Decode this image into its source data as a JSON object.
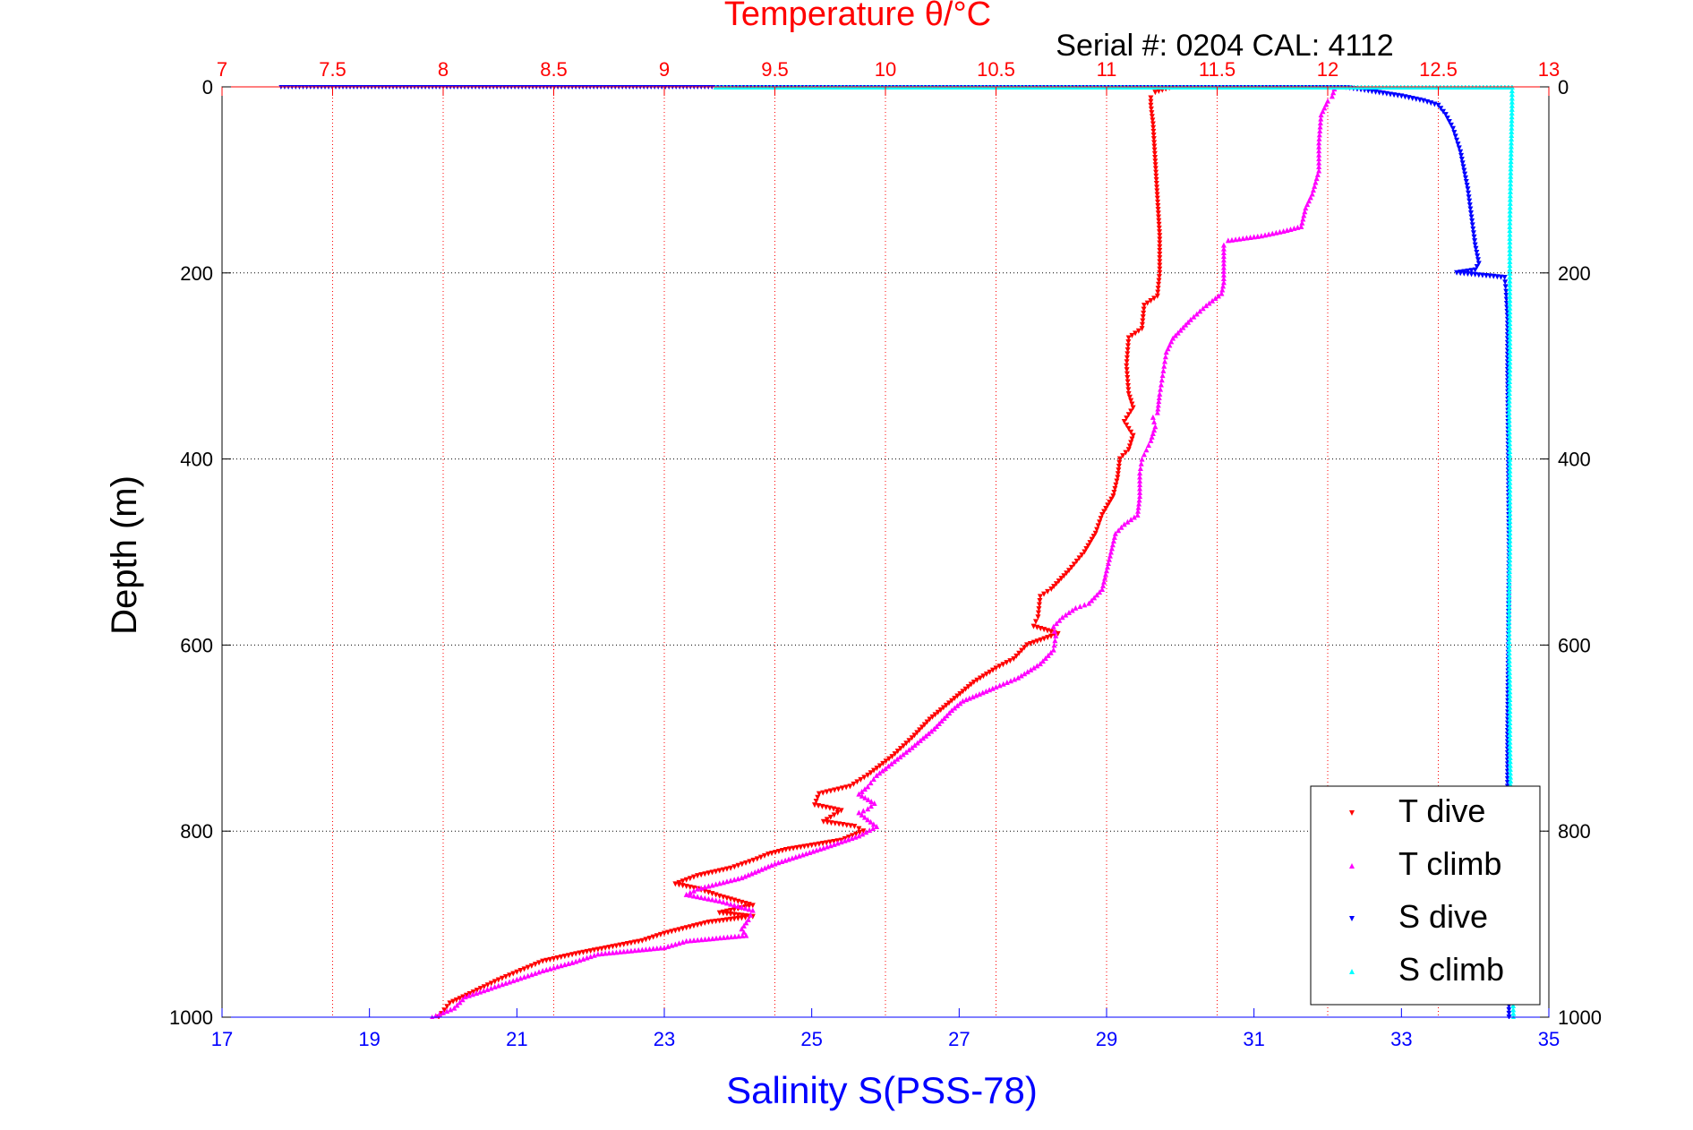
{
  "chart_data": {
    "type": "scatter",
    "title": "Temperature θ/°C",
    "subtitle": "Serial #: 0204  CAL: 4112",
    "xlabel": "Salinity S(PSS-78)",
    "ylabel": "Depth (m)",
    "x_top": {
      "label": "Temperature θ/°C",
      "lim": [
        7,
        13
      ],
      "ticks": [
        "7",
        "7.5",
        "8",
        "8.5",
        "9",
        "9.5",
        "10",
        "10.5",
        "11",
        "11.5",
        "12",
        "12.5",
        "13"
      ],
      "color": "#ff0000"
    },
    "x_bottom": {
      "label": "Salinity S(PSS-78)",
      "lim": [
        17,
        35
      ],
      "ticks": [
        "17",
        "19",
        "21",
        "23",
        "25",
        "27",
        "29",
        "31",
        "33",
        "35"
      ],
      "color": "#0000ff"
    },
    "y": {
      "lim": [
        0,
        1000
      ],
      "reversed": true,
      "ticks": [
        "0",
        "200",
        "400",
        "600",
        "800",
        "1000"
      ]
    },
    "grid": {
      "x_top": true,
      "y": true
    },
    "legend": {
      "position": "bottom-right"
    },
    "series": [
      {
        "name": "T dive",
        "axis": "top",
        "color": "#ff0000",
        "marker": "triangle-down",
        "points": [
          [
            11.3,
            0
          ],
          [
            11.22,
            6
          ],
          [
            11.2,
            12
          ],
          [
            11.2,
            20
          ],
          [
            11.21,
            40
          ],
          [
            11.22,
            80
          ],
          [
            11.23,
            120
          ],
          [
            11.24,
            160
          ],
          [
            11.24,
            200
          ],
          [
            11.23,
            225
          ],
          [
            11.17,
            235
          ],
          [
            11.16,
            260
          ],
          [
            11.1,
            270
          ],
          [
            11.09,
            300
          ],
          [
            11.1,
            330
          ],
          [
            11.12,
            345
          ],
          [
            11.08,
            360
          ],
          [
            11.12,
            375
          ],
          [
            11.1,
            390
          ],
          [
            11.06,
            400
          ],
          [
            11.05,
            420
          ],
          [
            11.03,
            440
          ],
          [
            10.98,
            460
          ],
          [
            10.95,
            480
          ],
          [
            10.9,
            500
          ],
          [
            10.83,
            520
          ],
          [
            10.75,
            540
          ],
          [
            10.7,
            548
          ],
          [
            10.69,
            570
          ],
          [
            10.67,
            580
          ],
          [
            10.78,
            588
          ],
          [
            10.64,
            600
          ],
          [
            10.58,
            615
          ],
          [
            10.5,
            625
          ],
          [
            10.4,
            640
          ],
          [
            10.3,
            660
          ],
          [
            10.2,
            680
          ],
          [
            10.12,
            700
          ],
          [
            10.03,
            720
          ],
          [
            9.92,
            740
          ],
          [
            9.84,
            752
          ],
          [
            9.7,
            760
          ],
          [
            9.68,
            772
          ],
          [
            9.8,
            778
          ],
          [
            9.72,
            790
          ],
          [
            9.86,
            795
          ],
          [
            9.9,
            800
          ],
          [
            9.8,
            810
          ],
          [
            9.55,
            820
          ],
          [
            9.47,
            825
          ],
          [
            9.42,
            830
          ],
          [
            9.3,
            840
          ],
          [
            9.15,
            848
          ],
          [
            9.05,
            857
          ],
          [
            9.15,
            862
          ],
          [
            9.25,
            870
          ],
          [
            9.4,
            880
          ],
          [
            9.25,
            888
          ],
          [
            9.4,
            892
          ],
          [
            9.2,
            898
          ],
          [
            9.0,
            910
          ],
          [
            8.9,
            918
          ],
          [
            8.75,
            925
          ],
          [
            8.6,
            932
          ],
          [
            8.45,
            940
          ],
          [
            8.35,
            950
          ],
          [
            8.25,
            960
          ],
          [
            8.12,
            975
          ],
          [
            8.03,
            985
          ],
          [
            7.98,
            1000
          ]
        ]
      },
      {
        "name": "T climb",
        "axis": "top",
        "color": "#ff00ff",
        "marker": "triangle-up",
        "points": [
          [
            12.03,
            2
          ],
          [
            12.02,
            10
          ],
          [
            12.0,
            15
          ],
          [
            11.97,
            30
          ],
          [
            11.96,
            60
          ],
          [
            11.96,
            90
          ],
          [
            11.93,
            115
          ],
          [
            11.9,
            130
          ],
          [
            11.88,
            150
          ],
          [
            11.8,
            155
          ],
          [
            11.7,
            160
          ],
          [
            11.55,
            165
          ],
          [
            11.53,
            170
          ],
          [
            11.53,
            190
          ],
          [
            11.53,
            210
          ],
          [
            11.52,
            222
          ],
          [
            11.45,
            235
          ],
          [
            11.38,
            250
          ],
          [
            11.3,
            270
          ],
          [
            11.27,
            285
          ],
          [
            11.26,
            300
          ],
          [
            11.25,
            315
          ],
          [
            11.24,
            330
          ],
          [
            11.23,
            350
          ],
          [
            11.21,
            355
          ],
          [
            11.22,
            365
          ],
          [
            11.2,
            380
          ],
          [
            11.18,
            390
          ],
          [
            11.16,
            400
          ],
          [
            11.15,
            415
          ],
          [
            11.15,
            440
          ],
          [
            11.14,
            460
          ],
          [
            11.08,
            470
          ],
          [
            11.04,
            480
          ],
          [
            11.02,
            500
          ],
          [
            11.0,
            520
          ],
          [
            10.98,
            540
          ],
          [
            10.92,
            555
          ],
          [
            10.86,
            560
          ],
          [
            10.8,
            570
          ],
          [
            10.76,
            580
          ],
          [
            10.77,
            590
          ],
          [
            10.76,
            605
          ],
          [
            10.7,
            620
          ],
          [
            10.6,
            635
          ],
          [
            10.5,
            645
          ],
          [
            10.35,
            660
          ],
          [
            10.3,
            670
          ],
          [
            10.22,
            690
          ],
          [
            10.12,
            710
          ],
          [
            10.04,
            725
          ],
          [
            9.96,
            740
          ],
          [
            9.92,
            752
          ],
          [
            9.88,
            760
          ],
          [
            9.95,
            770
          ],
          [
            9.92,
            776
          ],
          [
            9.88,
            780
          ],
          [
            9.96,
            795
          ],
          [
            9.88,
            805
          ],
          [
            9.72,
            818
          ],
          [
            9.5,
            835
          ],
          [
            9.35,
            850
          ],
          [
            9.15,
            862
          ],
          [
            9.1,
            868
          ],
          [
            9.25,
            875
          ],
          [
            9.4,
            885
          ],
          [
            9.38,
            895
          ],
          [
            9.35,
            905
          ],
          [
            9.37,
            912
          ],
          [
            9.1,
            918
          ],
          [
            9.0,
            925
          ],
          [
            8.7,
            932
          ],
          [
            8.6,
            940
          ],
          [
            8.45,
            950
          ],
          [
            8.3,
            962
          ],
          [
            8.2,
            970
          ],
          [
            8.1,
            978
          ],
          [
            8.05,
            990
          ],
          [
            7.95,
            1000
          ]
        ]
      },
      {
        "name": "S dive",
        "axis": "bottom",
        "color": "#0000ff",
        "marker": "triangle-down",
        "points": [
          [
            17.8,
            0
          ],
          [
            18.3,
            0
          ],
          [
            32.2,
            0
          ],
          [
            32.6,
            5
          ],
          [
            33.0,
            10
          ],
          [
            33.3,
            15
          ],
          [
            33.5,
            20
          ],
          [
            33.6,
            30
          ],
          [
            33.7,
            45
          ],
          [
            33.8,
            70
          ],
          [
            33.85,
            90
          ],
          [
            33.9,
            110
          ],
          [
            33.95,
            140
          ],
          [
            34.0,
            170
          ],
          [
            34.05,
            190
          ],
          [
            34.0,
            197
          ],
          [
            33.75,
            200
          ],
          [
            34.4,
            205
          ],
          [
            34.42,
            220
          ],
          [
            34.44,
            250
          ],
          [
            34.44,
            300
          ],
          [
            34.45,
            400
          ],
          [
            34.46,
            500
          ],
          [
            34.45,
            600
          ],
          [
            34.44,
            700
          ],
          [
            34.44,
            800
          ],
          [
            34.45,
            900
          ],
          [
            34.46,
            1000
          ]
        ]
      },
      {
        "name": "S climb",
        "axis": "bottom",
        "color": "#00ffff",
        "marker": "triangle-up",
        "points": [
          [
            23.7,
            0
          ],
          [
            25.3,
            0
          ],
          [
            34.5,
            0
          ],
          [
            34.5,
            20
          ],
          [
            34.49,
            60
          ],
          [
            34.48,
            100
          ],
          [
            34.47,
            150
          ],
          [
            34.47,
            200
          ],
          [
            34.47,
            250
          ],
          [
            34.47,
            300
          ],
          [
            34.46,
            350
          ],
          [
            34.47,
            400
          ],
          [
            34.47,
            450
          ],
          [
            34.47,
            500
          ],
          [
            34.46,
            550
          ],
          [
            34.46,
            600
          ],
          [
            34.47,
            650
          ],
          [
            34.47,
            700
          ],
          [
            34.48,
            750
          ],
          [
            34.48,
            800
          ],
          [
            34.49,
            850
          ],
          [
            34.49,
            900
          ],
          [
            34.5,
            950
          ],
          [
            34.52,
            1000
          ]
        ]
      }
    ]
  }
}
